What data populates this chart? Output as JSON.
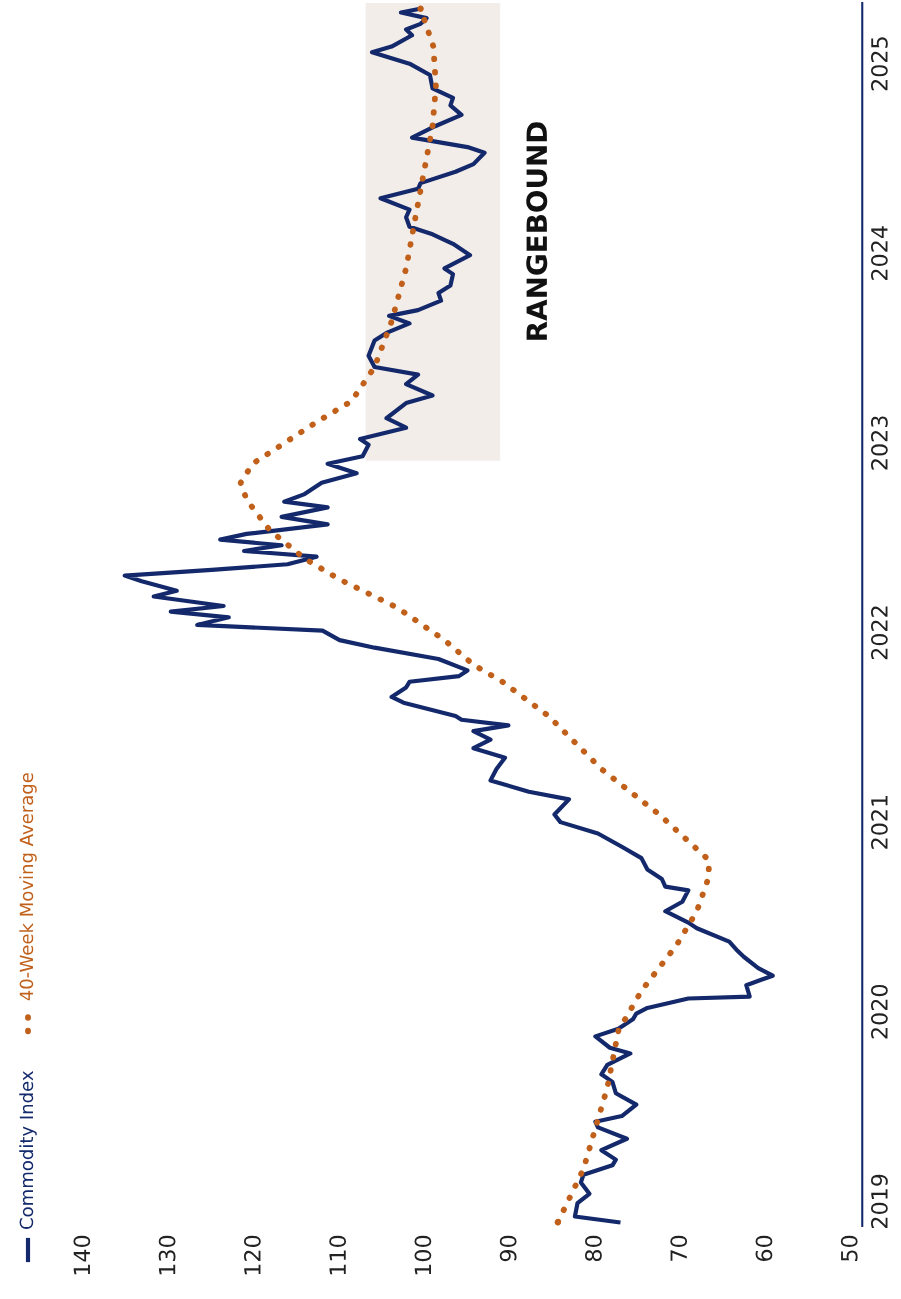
{
  "chart_data": {
    "type": "line",
    "series": [
      {
        "name": "Commodity Index",
        "color": "#14296b",
        "line_style": "solid",
        "values": [
          2018.89,
          2018.92,
          2018.99,
          2019.04,
          2019.1,
          2019.14,
          2019.19,
          2019.22,
          2019.27,
          2019.33,
          2019.39,
          2019.42,
          2019.45,
          2019.51,
          2019.57,
          2019.63,
          2019.67,
          2019.72,
          2019.78,
          2019.81,
          2019.87,
          2019.91,
          2019.96,
          2019.99,
          2020.02,
          2020.07,
          2020.08,
          2020.14,
          2020.19,
          2020.23,
          2020.29,
          2020.32,
          2020.37,
          2020.44,
          2020.47,
          2020.53,
          2020.58,
          2020.64,
          2020.66,
          2020.7,
          2020.75,
          2020.81,
          2020.87,
          2020.94,
          2021.0,
          2021.04,
          2021.12,
          2021.16,
          2021.22,
          2021.28,
          2021.34,
          2021.39,
          2021.435,
          2021.48,
          2021.51,
          2021.54,
          2021.56,
          2021.63,
          2021.66,
          2021.71,
          2021.74,
          2021.77,
          2021.8,
          2021.86,
          2021.92,
          2021.96,
          2022.01,
          2022.04,
          2022.08,
          2022.11,
          2022.14,
          2022.19,
          2022.22,
          2022.27,
          2022.3,
          2022.33,
          2022.36,
          2022.4,
          2022.43,
          2022.46,
          2022.49,
          2022.52,
          2022.57,
          2022.61,
          2022.66,
          2022.69,
          2022.73,
          2022.79,
          2022.84,
          2022.89,
          2022.93,
          2022.99,
          2023.02,
          2023.08,
          2023.13,
          2023.21,
          2023.25,
          2023.31,
          2023.36,
          2023.4,
          2023.46,
          2023.54,
          2023.58,
          2023.63,
          2023.67,
          2023.7,
          2023.75,
          2023.79,
          2023.83,
          2023.89,
          2023.92,
          2023.99,
          2024.05,
          2024.1,
          2024.14,
          2024.19,
          2024.23,
          2024.29,
          2024.34,
          2024.37,
          2024.43,
          2024.47,
          2024.53,
          2024.56,
          2024.61,
          2024.67,
          2024.73,
          2024.78,
          2024.82,
          2024.87,
          2024.94,
          2025.0,
          2025.06,
          2025.09,
          2025.15,
          2025.18,
          2025.21,
          2025.24,
          2025.27,
          2025.29
        ],
        "x": [
          77.3,
          82.4,
          82.1,
          80.7,
          81.7,
          81.4,
          78.0,
          77.6,
          79.3,
          76.3,
          79.7,
          80.0,
          76.9,
          75.2,
          77.6,
          78.0,
          79.3,
          78.6,
          75.9,
          78.3,
          80.0,
          77.3,
          75.6,
          75.2,
          73.9,
          69.1,
          61.9,
          62.3,
          59.2,
          60.9,
          62.6,
          63.3,
          64.3,
          68.1,
          69.1,
          71.8,
          69.8,
          69.1,
          71.8,
          72.2,
          73.9,
          74.6,
          76.9,
          79.7,
          84.1,
          84.8,
          83.1,
          87.8,
          92.3,
          91.6,
          90.6,
          94.3,
          92.3,
          94.3,
          90.2,
          95.7,
          96.4,
          102.5,
          103.9,
          102.2,
          101.8,
          96.0,
          95.0,
          98.4,
          105.9,
          110.0,
          112.0,
          126.7,
          123.0,
          129.8,
          123.6,
          131.8,
          129.1,
          133.2,
          135.2,
          125.0,
          116.1,
          112.7,
          121.2,
          116.8,
          124.0,
          120.9,
          111.4,
          116.8,
          111.4,
          116.5,
          114.1,
          112.1,
          108.0,
          111.4,
          107.3,
          106.6,
          107.6,
          102.2,
          104.5,
          102.2,
          99.1,
          102.2,
          100.8,
          105.9,
          106.6,
          105.9,
          104.5,
          101.8,
          104.2,
          100.8,
          98.1,
          98.4,
          97.0,
          96.7,
          97.7,
          94.7,
          96.7,
          99.1,
          101.8,
          102.2,
          101.8,
          105.2,
          100.8,
          100.5,
          96.4,
          94.3,
          93.0,
          95.0,
          101.5,
          98.8,
          95.7,
          97.0,
          96.7,
          99.1,
          99.4,
          101.8,
          106.2,
          103.9,
          101.5,
          102.2,
          100.5,
          99.8,
          102.8,
          100.5
        ]
      },
      {
        "name": "40-Week Moving Average",
        "color": "#c0601a",
        "line_style": "dotted",
        "values": [
          2018.89,
          2019.17,
          2019.6,
          2019.9,
          2020.11,
          2020.35,
          2020.53,
          2020.71,
          2020.8,
          2021.04,
          2021.28,
          2021.56,
          2021.74,
          2021.83,
          2021.96,
          2022.13,
          2022.28,
          2022.39,
          2022.54,
          2022.7,
          2022.79,
          2022.89,
          2023.01,
          2023.11,
          2023.22,
          2023.4,
          2023.64,
          2023.92,
          2024.19,
          2024.43,
          2024.67,
          2024.88,
          2025.09,
          2025.29
        ],
        "x": [
          84.4,
          81.4,
          78.6,
          77.3,
          74.6,
          70.5,
          68.1,
          66.7,
          66.7,
          72.5,
          79.3,
          85.5,
          90.9,
          94.3,
          97.7,
          103.2,
          110.0,
          114.1,
          118.2,
          120.9,
          121.6,
          120.2,
          116.1,
          112.7,
          108.6,
          105.9,
          103.9,
          102.2,
          101.1,
          100.1,
          99.1,
          98.7,
          99.0,
          100.5
        ]
      }
    ],
    "ylim": [
      2018.87,
      2025.32
    ],
    "yticks": [
      2019,
      2020,
      2021,
      2022,
      2023,
      2024,
      2025
    ],
    "xlim": [
      140,
      48.7
    ],
    "xticks": [
      140,
      130,
      120,
      110,
      100,
      90,
      80,
      70,
      60,
      50
    ],
    "bands": [
      {
        "axis": "y",
        "from": 2022.91,
        "to": 2025.32,
        "color": "#f3ede9",
        "label": "RANGEBOUND"
      }
    ],
    "grid": false,
    "legend": "left"
  }
}
